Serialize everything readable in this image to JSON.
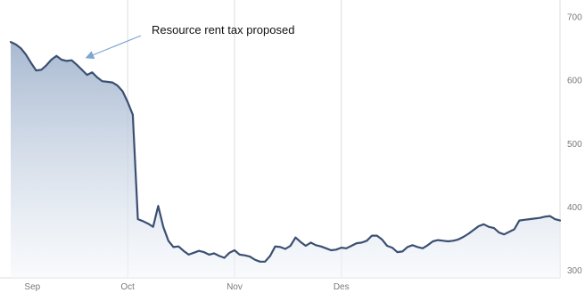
{
  "chart_data": {
    "type": "area",
    "title": "",
    "xlabel": "",
    "ylabel": "",
    "ylim": [
      300,
      715
    ],
    "y_axis_position": "right",
    "grid": {
      "vertical": true,
      "horizontal": false
    },
    "y_ticks": [
      300,
      400,
      500,
      600,
      700
    ],
    "x_ticks": [
      "Sep",
      "Oct",
      "Nov",
      "Des"
    ],
    "x_tick_index": [
      2,
      23,
      44,
      65
    ],
    "colors": {
      "line": "#3b4f72",
      "fill_top": "#9fb2cc",
      "fill_bottom": "#f4f7fb",
      "grid": "#dcdcdc",
      "arrow": "#7ea6d2"
    },
    "annotation": {
      "text": "Resource rent tax proposed",
      "point_index": 14
    },
    "series": [
      {
        "values": [
          660,
          656,
          650,
          640,
          627,
          615,
          616,
          623,
          632,
          638,
          632,
          630,
          631,
          624,
          616,
          608,
          612,
          604,
          598,
          597,
          596,
          591,
          582,
          565,
          545,
          380,
          377,
          373,
          368,
          401,
          368,
          346,
          336,
          337,
          330,
          324,
          327,
          330,
          328,
          324,
          326,
          322,
          319,
          327,
          331,
          324,
          323,
          321,
          316,
          313,
          313,
          322,
          337,
          336,
          333,
          338,
          351,
          344,
          338,
          343,
          339,
          337,
          334,
          331,
          332,
          335,
          334,
          338,
          342,
          343,
          346,
          354,
          354,
          348,
          338,
          335,
          328,
          329,
          336,
          339,
          336,
          334,
          339,
          345,
          347,
          346,
          345,
          346,
          348,
          352,
          357,
          363,
          369,
          372,
          368,
          366,
          359,
          356,
          360,
          364,
          378,
          379,
          380,
          381,
          382,
          384,
          385,
          380,
          378
        ]
      }
    ]
  }
}
